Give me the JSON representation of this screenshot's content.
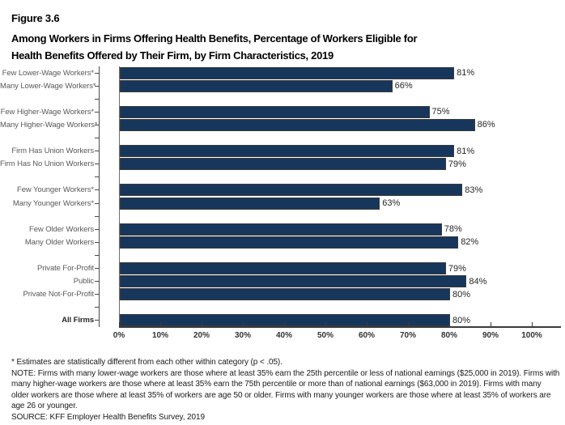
{
  "figure": {
    "label": "Figure 3.6",
    "title_line1": "Among Workers in Firms Offering Health Benefits, Percentage of Workers Eligible for",
    "title_line2": "Health Benefits Offered by Their Firm, by Firm Characteristics, 2019"
  },
  "chart_data": {
    "type": "bar",
    "orientation": "horizontal",
    "title": "Among Workers in Firms Offering Health Benefits, Percentage of Workers Eligible for Health Benefits Offered by Their Firm, by Firm Characteristics, 2019",
    "value_unit": "%",
    "xlim": [
      0,
      100
    ],
    "x_tick_labels": [
      "0%",
      "10%",
      "20%",
      "30%",
      "40%",
      "50%",
      "60%",
      "70%",
      "80%",
      "90%",
      "100%"
    ],
    "bar_color": "#17365C",
    "grid": false,
    "legend": false,
    "groups": [
      [
        {
          "label": "Few Lower-Wage Workers*",
          "value": 81
        },
        {
          "label": "Many Lower-Wage Workers*",
          "value": 66
        }
      ],
      [
        {
          "label": "Few Higher-Wage Workers*",
          "value": 75
        },
        {
          "label": "Many Higher-Wage Workers*",
          "value": 86
        }
      ],
      [
        {
          "label": "Firm Has Union Workers",
          "value": 81
        },
        {
          "label": "Firm Has No Union Workers",
          "value": 79
        }
      ],
      [
        {
          "label": "Few Younger Workers*",
          "value": 83
        },
        {
          "label": "Many Younger Workers*",
          "value": 63
        }
      ],
      [
        {
          "label": "Few Older Workers",
          "value": 78
        },
        {
          "label": "Many Older Workers",
          "value": 82
        }
      ],
      [
        {
          "label": "Private For-Profit",
          "value": 79
        },
        {
          "label": "Public",
          "value": 84
        },
        {
          "label": "Private Not-For-Profit",
          "value": 80
        }
      ],
      [
        {
          "label": "All Firms",
          "value": 80,
          "emphasis": true
        }
      ]
    ]
  },
  "footnotes": {
    "significance": "* Estimates are statistically different from each other within category (p < .05).",
    "note": "NOTE: Firms with many lower-wage workers are those where at least 35% earn the 25th percentile or less of national earnings ($25,000 in 2019). Firms with many higher-wage workers are those where at least 35% earn the 75th percentile or more than of national earnings ($63,000 in 2019). Firms with many older workers are those where at least 35% of workers are age 50 or older. Firms with many younger workers are those where at least 35% of workers are age 26 or younger.",
    "source": "SOURCE: KFF Employer Health Benefits Survey, 2019"
  }
}
